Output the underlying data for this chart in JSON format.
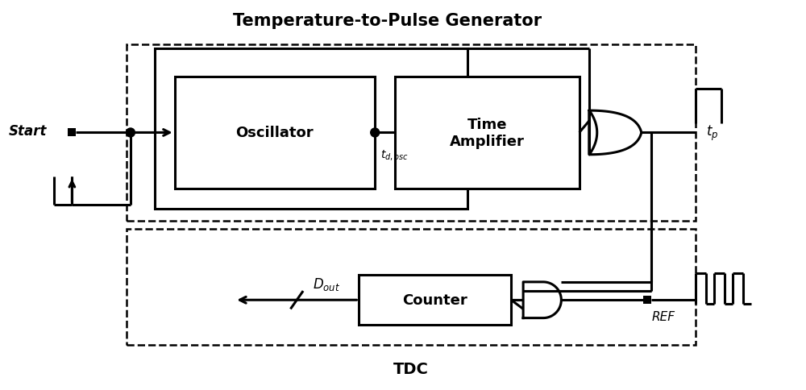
{
  "title": "Temperature-to-Pulse Generator",
  "tdc_label": "TDC",
  "start_label": "Start",
  "tp_label": "$t_p$",
  "ref_label": "REF",
  "dout_label": "$D_{out}$",
  "td_osc_label": "$t_{d,osc}$",
  "oscillator_label": "Oscillator",
  "time_amplifier_label": "Time\nAmplifier",
  "counter_label": "Counter",
  "bg_color": "#ffffff",
  "box_color": "#000000",
  "lw": 2.2,
  "dlw": 1.8,
  "fig_w": 10.0,
  "fig_h": 4.85,
  "dpi": 100
}
